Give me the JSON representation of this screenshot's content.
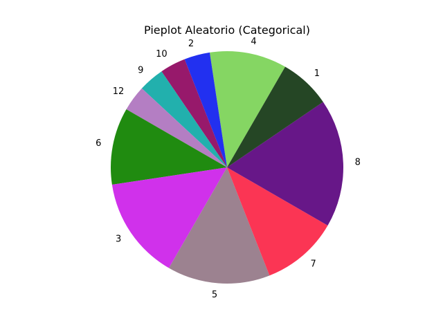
{
  "chart_data": {
    "type": "pie",
    "title": "Pieplot Aleatorio (Categorical)",
    "start_angle_deg": 60,
    "direction": "counterclockwise",
    "slices": [
      {
        "label": "4",
        "value": 3,
        "color": "#85d663"
      },
      {
        "label": "2",
        "value": 1,
        "color": "#2230f0"
      },
      {
        "label": "10",
        "value": 1,
        "color": "#97196b"
      },
      {
        "label": "9",
        "value": 1,
        "color": "#22b0ad"
      },
      {
        "label": "12",
        "value": 1,
        "color": "#b47ec3"
      },
      {
        "label": "6",
        "value": 3,
        "color": "#208b10"
      },
      {
        "label": "3",
        "value": 4,
        "color": "#d031eb"
      },
      {
        "label": "5",
        "value": 4,
        "color": "#9c8290"
      },
      {
        "label": "7",
        "value": 3,
        "color": "#fb3554"
      },
      {
        "label": "8",
        "value": 5,
        "color": "#671788"
      },
      {
        "label": "1",
        "value": 2,
        "color": "#254625"
      }
    ]
  }
}
